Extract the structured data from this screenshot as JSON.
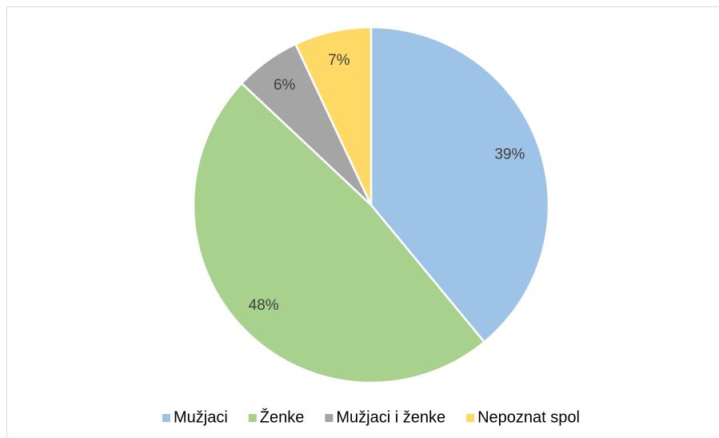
{
  "chart_data": {
    "type": "pie",
    "categories": [
      "Mužjaci",
      "Ženke",
      "Mužjaci i ženke",
      "Nepoznat spol"
    ],
    "values": [
      39,
      48,
      6,
      7
    ],
    "value_labels": [
      "39%",
      "48%",
      "6%",
      "7%"
    ],
    "colors": [
      "#9dc3e6",
      "#a9d18e",
      "#a5a5a5",
      "#ffd966"
    ],
    "legend": "bottom"
  }
}
